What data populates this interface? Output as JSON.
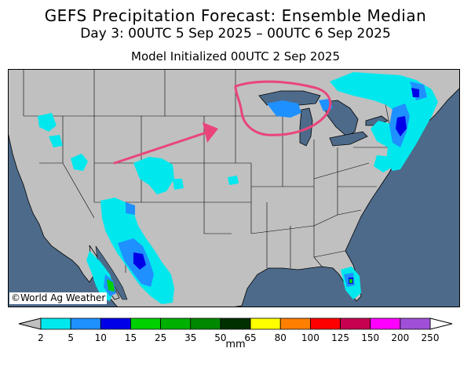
{
  "title": "GEFS Precipitation Forecast: Ensemble Median",
  "subtitle": "Day 3: 00UTC 5 Sep 2025 – 00UTC 6 Sep 2025",
  "init_line": "Model Initialized 00UTC 2 Sep 2025",
  "credit": "©World Ag Weather",
  "legend": {
    "units": "mm",
    "ticks": [
      "2",
      "5",
      "10",
      "15",
      "25",
      "35",
      "50",
      "65",
      "80",
      "100",
      "125",
      "150",
      "200",
      "250"
    ],
    "colors": [
      "#00e8ee",
      "#1e90ff",
      "#0000e8",
      "#00d000",
      "#00b000",
      "#008800",
      "#003000",
      "#ffff00",
      "#ff8000",
      "#ff0000",
      "#c80050",
      "#ff00ff",
      "#a050d8"
    ],
    "below_color": "#c0c0c0",
    "above_color": "#ffffff"
  },
  "colors": {
    "ocean": "#4d6a8a",
    "land": "#c0c0c0",
    "annotation": "#e9457a"
  }
}
